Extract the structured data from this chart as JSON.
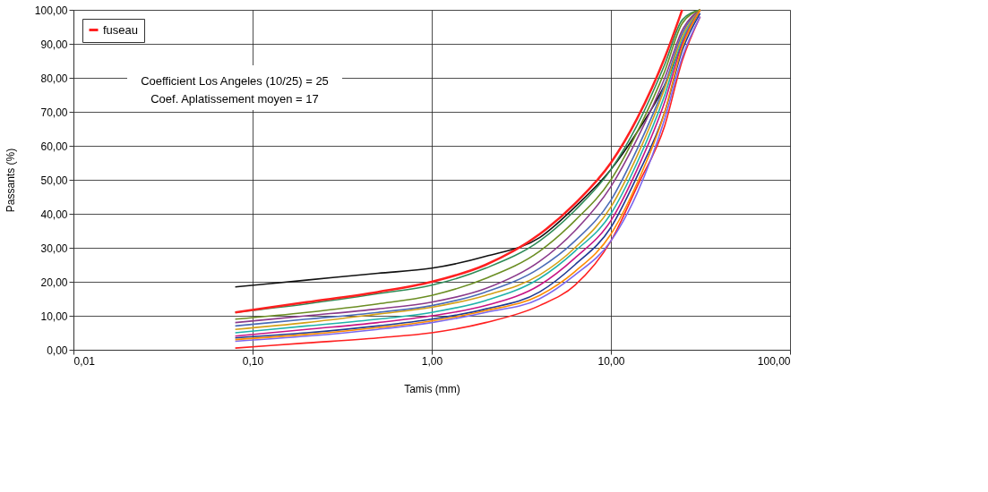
{
  "chart_data": {
    "type": "line",
    "xlabel": "Tamis (mm)",
    "ylabel": "Passants (%)",
    "log": "x",
    "xlim": [
      0.01,
      100
    ],
    "xticks": [
      {
        "value": 0.01,
        "label": "0,01"
      },
      {
        "value": 0.1,
        "label": "0,10"
      },
      {
        "value": 1,
        "label": "1,00"
      },
      {
        "value": 10,
        "label": "10,00"
      },
      {
        "value": 100,
        "label": "100,00"
      }
    ],
    "ylim": [
      0,
      100
    ],
    "yticks": [
      {
        "value": 0,
        "label": "0,00"
      },
      {
        "value": 10,
        "label": "10,00"
      },
      {
        "value": 20,
        "label": "20,00"
      },
      {
        "value": 30,
        "label": "30,00"
      },
      {
        "value": 40,
        "label": "40,00"
      },
      {
        "value": 50,
        "label": "50,00"
      },
      {
        "value": 60,
        "label": "60,00"
      },
      {
        "value": 70,
        "label": "70,00"
      },
      {
        "value": 80,
        "label": "80,00"
      },
      {
        "value": 90,
        "label": "90,00"
      },
      {
        "value": 100,
        "label": "100,00"
      }
    ],
    "grid": true,
    "legend": "top left",
    "marker": "none",
    "line_style": "solid",
    "annotations": [
      "Coefficient Los Angeles (10/25) = 25",
      "Coef. Aplatissement moyen = 17"
    ],
    "x": [
      0.08,
      0.2,
      0.5,
      1,
      2,
      4,
      6.3,
      10,
      14,
      20,
      25,
      31.5
    ],
    "series": [
      {
        "name": "fuseau",
        "color": "#ff2020",
        "values": [
          11,
          14,
          17,
          20,
          25,
          34,
          43,
          55,
          68,
          86,
          100,
          null
        ]
      },
      {
        "color": "#ff2020",
        "values": [
          0.5,
          2,
          3.5,
          5,
          8,
          13,
          19,
          32,
          48,
          66,
          85,
          98
        ]
      },
      {
        "color": "#111111",
        "values": [
          18.5,
          20.5,
          22.5,
          24,
          27.5,
          33,
          42,
          53,
          64,
          78,
          90,
          100
        ]
      },
      {
        "color": "#2e8b57",
        "values": [
          11,
          13.5,
          16.5,
          19,
          24,
          32,
          41,
          53,
          66,
          84,
          97,
          100
        ]
      },
      {
        "color": "#4b6cb7",
        "values": [
          7,
          9,
          11,
          13,
          17,
          24,
          32,
          44,
          59,
          78,
          93,
          100
        ]
      },
      {
        "color": "#8b3a8b",
        "values": [
          8,
          10,
          12,
          14,
          18,
          26,
          35,
          48,
          62,
          80,
          94,
          100
        ]
      },
      {
        "color": "#d4a017",
        "values": [
          6,
          8,
          10.5,
          12.5,
          16,
          22,
          30,
          42,
          57,
          77,
          92,
          100
        ]
      },
      {
        "color": "#20b2aa",
        "values": [
          5,
          7,
          9,
          11,
          14.5,
          21,
          29,
          40,
          55,
          75,
          91,
          100
        ]
      },
      {
        "color": "#c71585",
        "values": [
          4,
          6,
          8,
          10,
          13,
          19,
          27,
          38,
          53,
          73,
          90,
          100
        ]
      },
      {
        "color": "#1f3a93",
        "values": [
          3.5,
          5,
          7,
          9,
          12,
          17,
          25,
          36,
          51,
          70,
          88,
          99
        ]
      },
      {
        "color": "#7b68ee",
        "values": [
          2.5,
          4,
          6,
          8,
          11,
          15,
          22,
          32,
          46,
          68,
          86,
          98
        ]
      },
      {
        "color": "#6b8e23",
        "values": [
          9,
          11,
          13.5,
          16,
          21,
          29,
          38,
          50,
          64,
          82,
          96,
          100
        ]
      },
      {
        "color": "#ff8c00",
        "values": [
          3,
          4.5,
          6.5,
          8.5,
          11.5,
          16,
          23,
          34,
          49,
          70,
          89,
          100
        ]
      }
    ]
  }
}
